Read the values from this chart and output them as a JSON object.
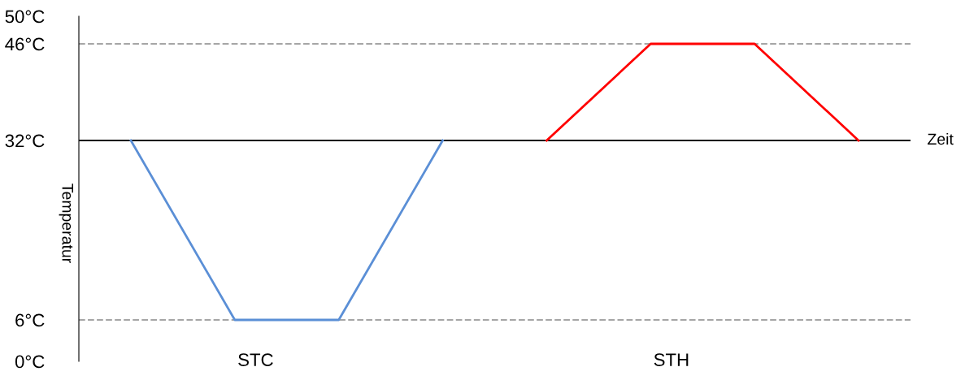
{
  "chart_data": {
    "type": "line",
    "ylabel": "Temperatur",
    "xlabel": "Zeit",
    "categories": [
      null,
      null,
      null,
      null,
      null,
      null,
      null,
      null
    ],
    "series": [
      {
        "color": "#5b8fd6",
        "values": [
          32,
          6,
          6,
          32,
          null,
          null,
          null,
          null
        ]
      },
      {
        "color": "#ff0000",
        "values": [
          null,
          null,
          null,
          null,
          32,
          46,
          46,
          32
        ]
      }
    ],
    "ylim": [
      0,
      50
    ],
    "yticks": [
      {
        "value": 0,
        "label": "0°C"
      },
      {
        "value": 6,
        "label": "6°C"
      },
      {
        "value": 32,
        "label": "32°C"
      },
      {
        "value": 46,
        "label": "46°C"
      },
      {
        "value": 50,
        "label": "50°C"
      }
    ],
    "ref_lines": [
      {
        "axis": "y",
        "value": 46,
        "color": "#a6a6a6",
        "line_style": "dashed"
      },
      {
        "axis": "y",
        "value": 6,
        "color": "#a6a6a6",
        "line_style": "dashed"
      },
      {
        "axis": "y",
        "value": 32,
        "color": "#000000",
        "line_style": "solid"
      }
    ],
    "annotations": [
      "STC",
      "STH"
    ],
    "grid": false,
    "legend": false,
    "marker": "none",
    "line_style": "solid"
  }
}
